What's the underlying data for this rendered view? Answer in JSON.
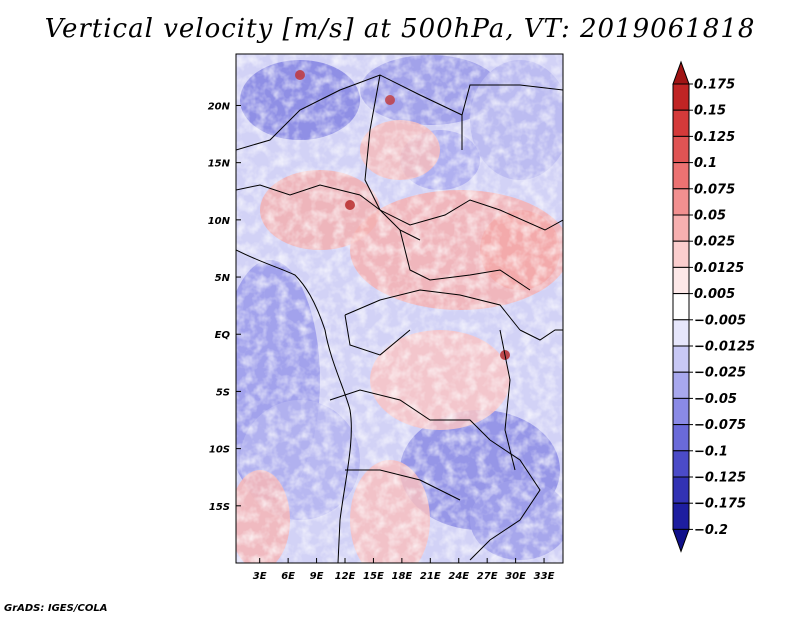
{
  "title": "Vertical velocity [m/s] at 500hPa, VT: 2019061818",
  "credit": "GrADS: IGES/COLA",
  "chart_data": {
    "type": "heatmap",
    "title": "Vertical velocity [m/s] at 500hPa, VT: 2019061818",
    "variable": "Vertical velocity",
    "units": "m/s",
    "level": "500hPa",
    "valid_time": "2019061818",
    "x_range_deg": [
      0.5,
      35
    ],
    "y_range_deg": [
      -20,
      24.5
    ],
    "x_ticks": [
      {
        "value": 3,
        "label": "3E"
      },
      {
        "value": 6,
        "label": "6E"
      },
      {
        "value": 9,
        "label": "9E"
      },
      {
        "value": 12,
        "label": "12E"
      },
      {
        "value": 15,
        "label": "15E"
      },
      {
        "value": 18,
        "label": "18E"
      },
      {
        "value": 21,
        "label": "21E"
      },
      {
        "value": 24,
        "label": "24E"
      },
      {
        "value": 27,
        "label": "27E"
      },
      {
        "value": 30,
        "label": "30E"
      },
      {
        "value": 33,
        "label": "33E"
      }
    ],
    "y_ticks": [
      {
        "value": 20,
        "label": "20N"
      },
      {
        "value": 15,
        "label": "15N"
      },
      {
        "value": 10,
        "label": "10N"
      },
      {
        "value": 5,
        "label": "5N"
      },
      {
        "value": 0,
        "label": "EQ"
      },
      {
        "value": -5,
        "label": "5S"
      },
      {
        "value": -10,
        "label": "10S"
      },
      {
        "value": -15,
        "label": "15S"
      }
    ],
    "colorbar": {
      "labels": [
        "0.175",
        "0.15",
        "0.125",
        "0.1",
        "0.075",
        "0.05",
        "0.025",
        "0.0125",
        "0.005",
        "−0.005",
        "−0.0125",
        "−0.025",
        "−0.05",
        "−0.075",
        "−0.1",
        "−0.125",
        "−0.175",
        "−0.2"
      ],
      "colors": [
        "#a01414",
        "#c02424",
        "#d43a3a",
        "#e05454",
        "#ec7272",
        "#f29090",
        "#f7b0b0",
        "#fbcece",
        "#fde8e8",
        "#ffffff",
        "#e6e6fb",
        "#c8c8f5",
        "#a8a8ee",
        "#8a8ae6",
        "#6a6ad9",
        "#4b4bc8",
        "#3232b4",
        "#1e1ea0",
        "#10108a"
      ]
    }
  }
}
